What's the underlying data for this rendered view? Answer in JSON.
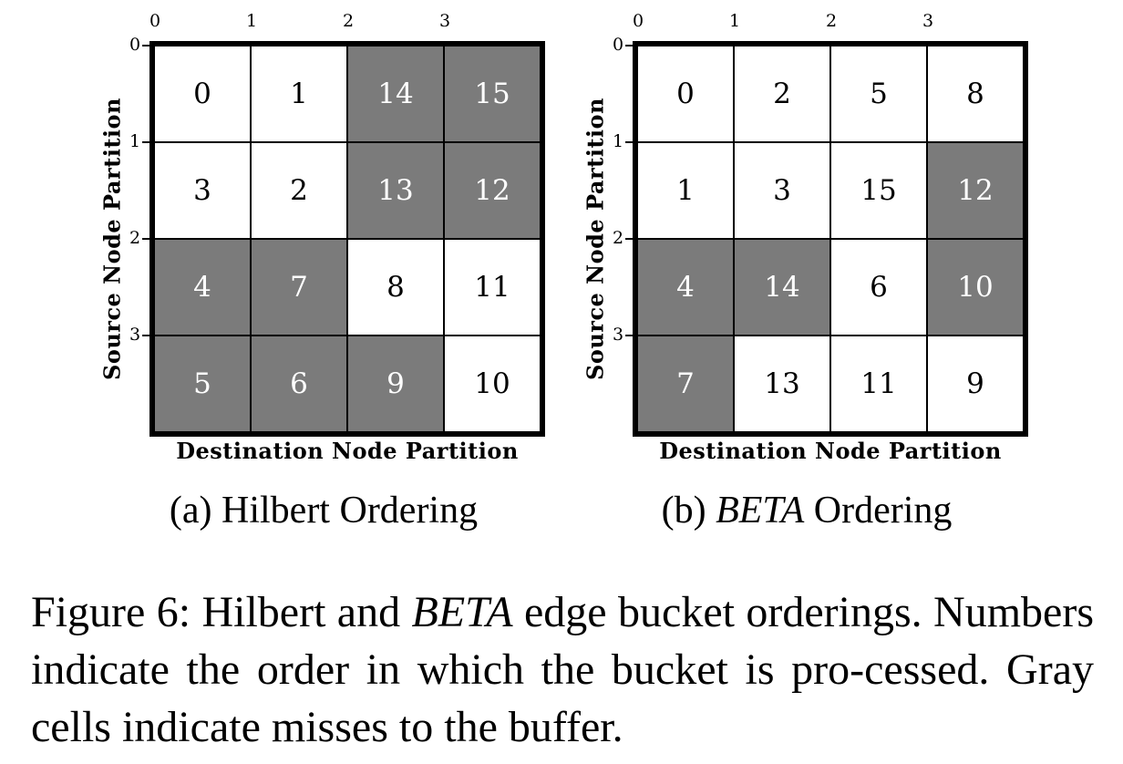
{
  "x_ticks": [
    "0",
    "1",
    "2",
    "3"
  ],
  "y_ticks": [
    "0",
    "1",
    "2",
    "3"
  ],
  "panels": [
    {
      "xlabel": "Destination Node Partition",
      "ylabel": "Source Node Partition",
      "caption_prefix": "(a) Hilbert",
      "caption_italic": "",
      "caption_suffix": " Ordering",
      "cells": [
        [
          "0",
          "1",
          "14",
          "15"
        ],
        [
          "3",
          "2",
          "13",
          "12"
        ],
        [
          "4",
          "7",
          "8",
          "11"
        ],
        [
          "5",
          "6",
          "9",
          "10"
        ]
      ],
      "miss": [
        [
          false,
          false,
          true,
          true
        ],
        [
          false,
          false,
          true,
          true
        ],
        [
          true,
          true,
          false,
          false
        ],
        [
          true,
          true,
          true,
          false
        ]
      ]
    },
    {
      "xlabel": "Destination Node Partition",
      "ylabel": "Source Node Partition",
      "caption_prefix": "(b) ",
      "caption_italic": "BETA",
      "caption_suffix": " Ordering",
      "cells": [
        [
          "0",
          "2",
          "5",
          "8"
        ],
        [
          "1",
          "3",
          "15",
          "12"
        ],
        [
          "4",
          "14",
          "6",
          "10"
        ],
        [
          "7",
          "13",
          "11",
          "9"
        ]
      ],
      "miss": [
        [
          false,
          false,
          false,
          false
        ],
        [
          false,
          false,
          false,
          true
        ],
        [
          true,
          true,
          false,
          true
        ],
        [
          true,
          false,
          false,
          false
        ]
      ]
    }
  ],
  "caption": {
    "part1": "Figure 6:  Hilbert and ",
    "italic": "BETA",
    "part2": " edge bucket orderings. Numbers indicate the order in which the bucket is pro-cessed. Gray cells indicate misses to the buffer."
  },
  "colors": {
    "miss": "#7b7b7b",
    "hit": "#ffffff",
    "grid": "#000000"
  }
}
